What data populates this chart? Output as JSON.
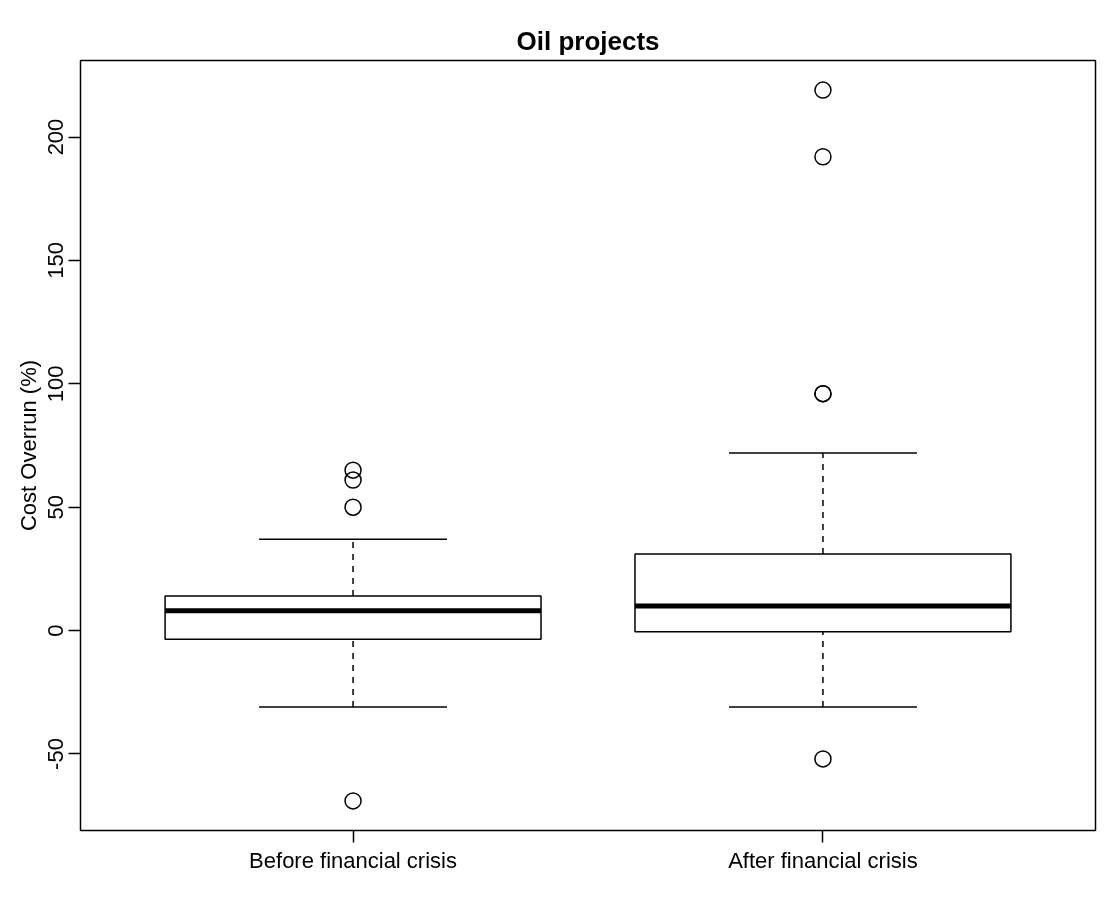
{
  "chart_data": {
    "type": "box",
    "title": "Oil projects",
    "ylabel": "Cost Overrun (%)",
    "categories": [
      "Before financial crisis",
      "After financial crisis"
    ],
    "boxes": [
      {
        "low": -31,
        "q1": -3.5,
        "median": 8,
        "q3": 14,
        "high": 37,
        "outliers": [
          65,
          61,
          50,
          -69
        ]
      },
      {
        "low": -31,
        "q1": -0.5,
        "median": 10,
        "q3": 31,
        "high": 72,
        "outliers": [
          219,
          192,
          96,
          96,
          -52
        ]
      }
    ],
    "color": "#000000",
    "ylim": [
      -81,
      231
    ],
    "yticks": [
      -50,
      0,
      50,
      100,
      150,
      200
    ],
    "grid": false,
    "marker": "circle"
  }
}
